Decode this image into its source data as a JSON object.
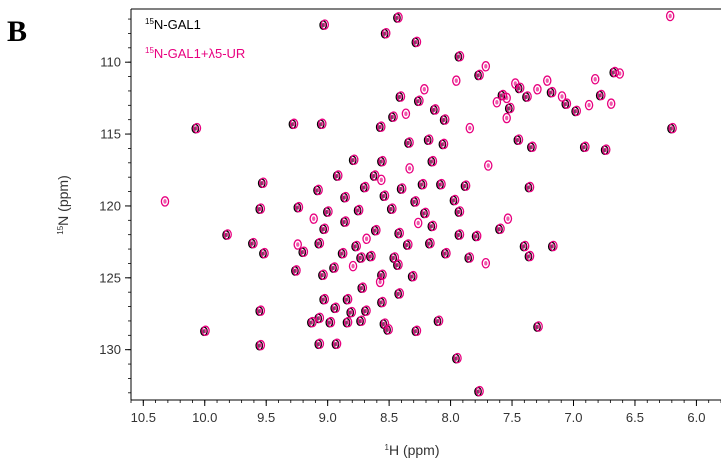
{
  "panel_label": "B",
  "chart_data": {
    "type": "scatter",
    "xlabel": "H (ppm)",
    "xlabel_superscript": "1",
    "ylabel": "N (ppm)",
    "ylabel_superscript": "15",
    "x_reversed": true,
    "y_reversed": true,
    "xlim": [
      10.6,
      5.8
    ],
    "ylim": [
      106.3,
      133.5
    ],
    "x_ticks": [
      "10.5",
      "10.0",
      "9.5",
      "9.0",
      "8.5",
      "8.0",
      "7.5",
      "7.0",
      "6.5",
      "6.0"
    ],
    "y_ticks": [
      "110",
      "115",
      "120",
      "125",
      "130"
    ],
    "legend_position": "top-left",
    "series": [
      {
        "name": "N-GAL1",
        "name_superscript": "15",
        "color": "#000000",
        "points": [
          [
            9.03,
            107.4
          ],
          [
            8.43,
            106.9
          ],
          [
            8.53,
            108.0
          ],
          [
            8.28,
            108.6
          ],
          [
            7.93,
            109.6
          ],
          [
            7.77,
            110.9
          ],
          [
            7.44,
            111.8
          ],
          [
            7.38,
            112.4
          ],
          [
            7.18,
            112.1
          ],
          [
            7.06,
            112.9
          ],
          [
            6.98,
            113.4
          ],
          [
            6.78,
            112.3
          ],
          [
            6.67,
            110.7
          ],
          [
            7.58,
            112.3
          ],
          [
            7.52,
            113.2
          ],
          [
            8.41,
            112.4
          ],
          [
            8.26,
            112.7
          ],
          [
            8.13,
            113.3
          ],
          [
            8.05,
            114.0
          ],
          [
            8.47,
            113.8
          ],
          [
            8.57,
            114.5
          ],
          [
            9.05,
            114.3
          ],
          [
            9.28,
            114.3
          ],
          [
            10.07,
            114.6
          ],
          [
            6.2,
            114.6
          ],
          [
            8.06,
            115.7
          ],
          [
            8.18,
            115.4
          ],
          [
            8.34,
            115.6
          ],
          [
            7.45,
            115.4
          ],
          [
            7.34,
            115.9
          ],
          [
            6.91,
            115.9
          ],
          [
            6.74,
            116.1
          ],
          [
            8.79,
            116.8
          ],
          [
            8.56,
            116.9
          ],
          [
            8.15,
            116.9
          ],
          [
            8.62,
            117.9
          ],
          [
            8.92,
            117.9
          ],
          [
            9.53,
            118.4
          ],
          [
            9.08,
            118.9
          ],
          [
            8.7,
            118.7
          ],
          [
            8.4,
            118.8
          ],
          [
            8.23,
            118.5
          ],
          [
            8.08,
            118.5
          ],
          [
            7.88,
            118.6
          ],
          [
            7.36,
            118.7
          ],
          [
            8.86,
            119.4
          ],
          [
            8.54,
            119.3
          ],
          [
            8.29,
            119.7
          ],
          [
            7.97,
            119.6
          ],
          [
            9.55,
            120.2
          ],
          [
            9.24,
            120.1
          ],
          [
            9.0,
            120.4
          ],
          [
            8.75,
            120.3
          ],
          [
            8.48,
            120.2
          ],
          [
            8.21,
            120.5
          ],
          [
            7.93,
            120.4
          ],
          [
            9.03,
            121.6
          ],
          [
            8.86,
            121.1
          ],
          [
            8.61,
            121.7
          ],
          [
            8.42,
            121.9
          ],
          [
            8.15,
            121.4
          ],
          [
            7.93,
            122.0
          ],
          [
            7.6,
            121.6
          ],
          [
            7.79,
            122.1
          ],
          [
            9.82,
            122.0
          ],
          [
            9.61,
            122.6
          ],
          [
            9.07,
            122.6
          ],
          [
            8.77,
            122.8
          ],
          [
            8.35,
            122.7
          ],
          [
            8.17,
            122.6
          ],
          [
            7.4,
            122.8
          ],
          [
            7.17,
            122.8
          ],
          [
            9.52,
            123.3
          ],
          [
            9.2,
            123.2
          ],
          [
            8.88,
            123.3
          ],
          [
            8.73,
            123.6
          ],
          [
            8.65,
            123.5
          ],
          [
            8.46,
            123.6
          ],
          [
            8.04,
            123.3
          ],
          [
            7.85,
            123.6
          ],
          [
            7.36,
            123.5
          ],
          [
            8.95,
            124.3
          ],
          [
            8.43,
            124.1
          ],
          [
            9.26,
            124.5
          ],
          [
            9.04,
            124.8
          ],
          [
            8.56,
            124.8
          ],
          [
            8.31,
            124.9
          ],
          [
            8.72,
            125.7
          ],
          [
            8.42,
            126.1
          ],
          [
            9.03,
            126.5
          ],
          [
            8.84,
            126.5
          ],
          [
            8.56,
            126.7
          ],
          [
            8.94,
            127.1
          ],
          [
            9.55,
            127.3
          ],
          [
            8.69,
            127.3
          ],
          [
            8.81,
            127.4
          ],
          [
            9.07,
            127.8
          ],
          [
            8.98,
            128.1
          ],
          [
            8.84,
            128.1
          ],
          [
            8.73,
            128.0
          ],
          [
            8.54,
            128.2
          ],
          [
            8.1,
            128.0
          ],
          [
            9.13,
            128.1
          ],
          [
            7.29,
            128.4
          ],
          [
            10.0,
            128.7
          ],
          [
            8.51,
            128.6
          ],
          [
            8.28,
            128.7
          ],
          [
            9.55,
            129.7
          ],
          [
            9.07,
            129.6
          ],
          [
            8.93,
            129.6
          ],
          [
            7.95,
            130.6
          ],
          [
            7.77,
            132.9
          ]
        ]
      },
      {
        "name": "N-GAL1+λ5-UR",
        "name_superscript": "15",
        "color": "#e8007f",
        "points": [
          [
            9.03,
            107.4
          ],
          [
            8.43,
            106.9
          ],
          [
            8.53,
            108.0
          ],
          [
            8.28,
            108.6
          ],
          [
            7.93,
            109.6
          ],
          [
            7.77,
            110.9
          ],
          [
            7.44,
            111.8
          ],
          [
            7.38,
            112.4
          ],
          [
            7.18,
            112.1
          ],
          [
            7.06,
            112.9
          ],
          [
            6.98,
            113.4
          ],
          [
            6.78,
            112.3
          ],
          [
            6.67,
            110.7
          ],
          [
            7.58,
            112.3
          ],
          [
            7.52,
            113.2
          ],
          [
            8.41,
            112.4
          ],
          [
            8.26,
            112.7
          ],
          [
            8.13,
            113.3
          ],
          [
            8.05,
            114.0
          ],
          [
            8.47,
            113.8
          ],
          [
            8.57,
            114.5
          ],
          [
            9.05,
            114.3
          ],
          [
            9.28,
            114.3
          ],
          [
            10.07,
            114.6
          ],
          [
            6.2,
            114.6
          ],
          [
            8.06,
            115.7
          ],
          [
            8.18,
            115.4
          ],
          [
            8.34,
            115.6
          ],
          [
            7.45,
            115.4
          ],
          [
            7.34,
            115.9
          ],
          [
            6.91,
            115.9
          ],
          [
            6.74,
            116.1
          ],
          [
            8.79,
            116.8
          ],
          [
            8.56,
            116.9
          ],
          [
            8.15,
            116.9
          ],
          [
            8.62,
            117.9
          ],
          [
            8.92,
            117.9
          ],
          [
            9.53,
            118.4
          ],
          [
            9.08,
            118.9
          ],
          [
            8.7,
            118.7
          ],
          [
            8.4,
            118.8
          ],
          [
            8.23,
            118.5
          ],
          [
            8.08,
            118.5
          ],
          [
            7.88,
            118.6
          ],
          [
            7.36,
            118.7
          ],
          [
            8.86,
            119.4
          ],
          [
            8.54,
            119.3
          ],
          [
            8.29,
            119.7
          ],
          [
            7.97,
            119.6
          ],
          [
            9.55,
            120.2
          ],
          [
            9.24,
            120.1
          ],
          [
            9.0,
            120.4
          ],
          [
            8.75,
            120.3
          ],
          [
            8.48,
            120.2
          ],
          [
            8.21,
            120.5
          ],
          [
            7.93,
            120.4
          ],
          [
            9.03,
            121.6
          ],
          [
            8.86,
            121.1
          ],
          [
            8.61,
            121.7
          ],
          [
            8.42,
            121.9
          ],
          [
            8.15,
            121.4
          ],
          [
            7.93,
            122.0
          ],
          [
            7.6,
            121.6
          ],
          [
            7.79,
            122.1
          ],
          [
            9.82,
            122.0
          ],
          [
            9.61,
            122.6
          ],
          [
            9.07,
            122.6
          ],
          [
            8.77,
            122.8
          ],
          [
            8.35,
            122.7
          ],
          [
            8.17,
            122.6
          ],
          [
            7.4,
            122.8
          ],
          [
            7.17,
            122.8
          ],
          [
            9.52,
            123.3
          ],
          [
            9.2,
            123.2
          ],
          [
            8.88,
            123.3
          ],
          [
            8.73,
            123.6
          ],
          [
            8.65,
            123.5
          ],
          [
            8.46,
            123.6
          ],
          [
            8.04,
            123.3
          ],
          [
            7.85,
            123.6
          ],
          [
            7.36,
            123.5
          ],
          [
            8.95,
            124.3
          ],
          [
            8.43,
            124.1
          ],
          [
            9.26,
            124.5
          ],
          [
            9.04,
            124.8
          ],
          [
            8.56,
            124.8
          ],
          [
            8.31,
            124.9
          ],
          [
            8.72,
            125.7
          ],
          [
            8.42,
            126.1
          ],
          [
            9.03,
            126.5
          ],
          [
            8.84,
            126.5
          ],
          [
            8.56,
            126.7
          ],
          [
            8.94,
            127.1
          ],
          [
            9.55,
            127.3
          ],
          [
            8.69,
            127.3
          ],
          [
            8.81,
            127.4
          ],
          [
            9.07,
            127.8
          ],
          [
            8.98,
            128.1
          ],
          [
            8.84,
            128.1
          ],
          [
            8.73,
            128.0
          ],
          [
            8.54,
            128.2
          ],
          [
            8.1,
            128.0
          ],
          [
            9.13,
            128.1
          ],
          [
            7.29,
            128.4
          ],
          [
            10.0,
            128.7
          ],
          [
            8.51,
            128.6
          ],
          [
            8.28,
            128.7
          ],
          [
            9.55,
            129.7
          ],
          [
            9.07,
            129.6
          ],
          [
            8.93,
            129.6
          ],
          [
            7.95,
            130.6
          ],
          [
            7.77,
            132.9
          ],
          [
            7.48,
            111.5
          ],
          [
            7.3,
            111.9
          ],
          [
            7.63,
            112.8
          ],
          [
            6.88,
            113.0
          ],
          [
            6.63,
            110.8
          ],
          [
            7.72,
            110.3
          ],
          [
            10.33,
            119.7
          ],
          [
            7.55,
            113.9
          ],
          [
            6.7,
            112.9
          ],
          [
            8.37,
            113.6
          ],
          [
            8.22,
            111.9
          ],
          [
            7.96,
            111.3
          ],
          [
            8.34,
            117.4
          ],
          [
            8.57,
            118.2
          ],
          [
            7.85,
            114.6
          ],
          [
            9.12,
            120.9
          ],
          [
            8.69,
            122.3
          ],
          [
            8.27,
            121.2
          ],
          [
            7.7,
            117.2
          ],
          [
            8.58,
            125.3
          ],
          [
            8.8,
            124.2
          ],
          [
            9.25,
            122.7
          ],
          [
            7.54,
            120.9
          ],
          [
            7.72,
            124.0
          ],
          [
            6.22,
            106.8
          ],
          [
            7.55,
            112.5
          ],
          [
            7.22,
            111.3
          ],
          [
            7.1,
            112.4
          ],
          [
            6.83,
            111.2
          ]
        ]
      }
    ]
  }
}
